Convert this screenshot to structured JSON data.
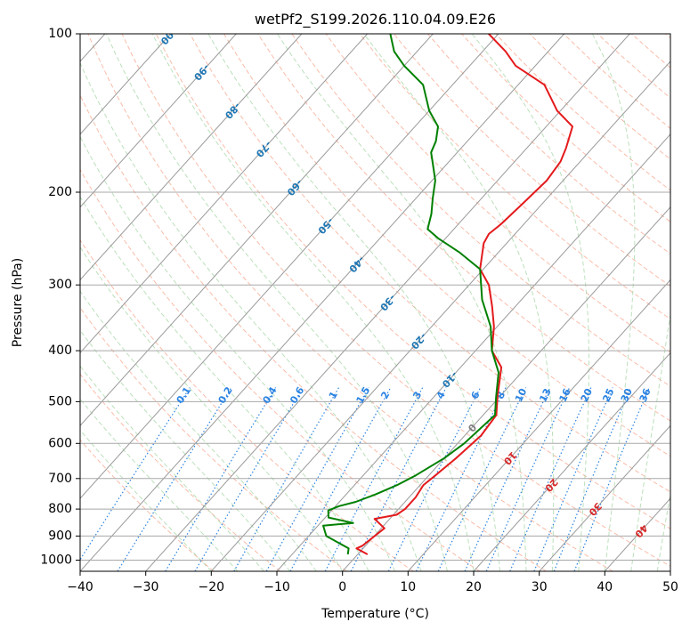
{
  "chart_data": {
    "type": "skew-t",
    "title": "wetPf2_S199.2026.110.04.09.E26",
    "xlabel": "Temperature (°C)",
    "ylabel": "Pressure (hPa)",
    "xlim": [
      -40,
      50
    ],
    "ylim_pressure": [
      1050,
      100
    ],
    "x_ticks": [
      "−40",
      "−30",
      "−20",
      "−10",
      "0",
      "10",
      "20",
      "30",
      "40",
      "50"
    ],
    "x_tick_values": [
      -40,
      -30,
      -20,
      -10,
      0,
      10,
      20,
      30,
      40,
      50
    ],
    "y_ticks": [
      "100",
      "200",
      "300",
      "400",
      "500",
      "600",
      "700",
      "800",
      "900",
      "1000"
    ],
    "y_tick_values": [
      100,
      200,
      300,
      400,
      500,
      600,
      700,
      800,
      900,
      1000
    ],
    "colors": {
      "temperature": "#e41a1c",
      "dewpoint": "#008000",
      "isotherm": "#9a9a9a",
      "dry_adiabat": "#f7a58c",
      "moist_adiabat": "#9fd39f",
      "mixing_ratio": "#2b83e2",
      "dry_adiabat_label": "#d62728",
      "moist_label": "#1f77b4",
      "zero_label": "#7f7f7f"
    },
    "series": [
      {
        "name": "Temperature",
        "points": [
          [
            1.5,
            975
          ],
          [
            -1.0,
            950
          ],
          [
            -0.5,
            940
          ],
          [
            0.5,
            870
          ],
          [
            -2.3,
            835
          ],
          [
            0.5,
            820
          ],
          [
            1.0,
            800
          ],
          [
            1.0,
            760
          ],
          [
            0.5,
            720
          ],
          [
            1.0,
            690
          ],
          [
            1.8,
            640
          ],
          [
            2.5,
            580
          ],
          [
            2.0,
            530
          ],
          [
            -0.3,
            490
          ],
          [
            -3.8,
            430
          ],
          [
            -7.5,
            400
          ],
          [
            -10.5,
            360
          ],
          [
            -13.5,
            330
          ],
          [
            -17.0,
            300
          ],
          [
            -20.5,
            280
          ],
          [
            -23.5,
            250
          ],
          [
            -24.0,
            240
          ],
          [
            -23.5,
            230
          ],
          [
            -23.0,
            210
          ],
          [
            -22.5,
            190
          ],
          [
            -23.0,
            175
          ],
          [
            -24.0,
            165
          ],
          [
            -26.0,
            150
          ],
          [
            -30.5,
            140
          ],
          [
            -36.0,
            125
          ],
          [
            -43.0,
            115
          ],
          [
            -46.5,
            108
          ],
          [
            -51.5,
            100
          ]
        ]
      },
      {
        "name": "Dewpoint",
        "points": [
          [
            -1.5,
            975
          ],
          [
            -2.2,
            950
          ],
          [
            -7.3,
            900
          ],
          [
            -9.2,
            860
          ],
          [
            -5.0,
            850
          ],
          [
            -9.5,
            830
          ],
          [
            -10.5,
            805
          ],
          [
            -9.5,
            790
          ],
          [
            -7.5,
            775
          ],
          [
            -5.5,
            750
          ],
          [
            -3.5,
            720
          ],
          [
            -2.0,
            690
          ],
          [
            0.0,
            640
          ],
          [
            1.0,
            600
          ],
          [
            1.8,
            530
          ],
          [
            -0.5,
            490
          ],
          [
            -3.5,
            440
          ],
          [
            -7.5,
            400
          ],
          [
            -11.0,
            360
          ],
          [
            -16.0,
            320
          ],
          [
            -20.5,
            280
          ],
          [
            -26.0,
            260
          ],
          [
            -31.0,
            245
          ],
          [
            -34.0,
            235
          ],
          [
            -35.5,
            220
          ],
          [
            -37.5,
            205
          ],
          [
            -39.5,
            190
          ],
          [
            -42.5,
            175
          ],
          [
            -44.0,
            168
          ],
          [
            -44.8,
            160
          ],
          [
            -46.5,
            150
          ],
          [
            -50.0,
            140
          ],
          [
            -54.5,
            125
          ],
          [
            -60.0,
            115
          ],
          [
            -63.5,
            108
          ],
          [
            -66.5,
            100
          ]
        ]
      }
    ],
    "dry_adiabat_labels": [
      "0",
      "10",
      "20",
      "30",
      "40"
    ],
    "moist_adiabat_labels": [
      "-100",
      "-90",
      "-80",
      "-70",
      "-60",
      "-50",
      "-40",
      "-30",
      "-20",
      "-10"
    ],
    "mixing_ratio_labels": [
      "0.1",
      "0.2",
      "0.4",
      "0.6",
      "1",
      "1.5",
      "2",
      "3",
      "4",
      "6",
      "8",
      "10",
      "13",
      "16",
      "20",
      "25",
      "30",
      "36"
    ]
  }
}
